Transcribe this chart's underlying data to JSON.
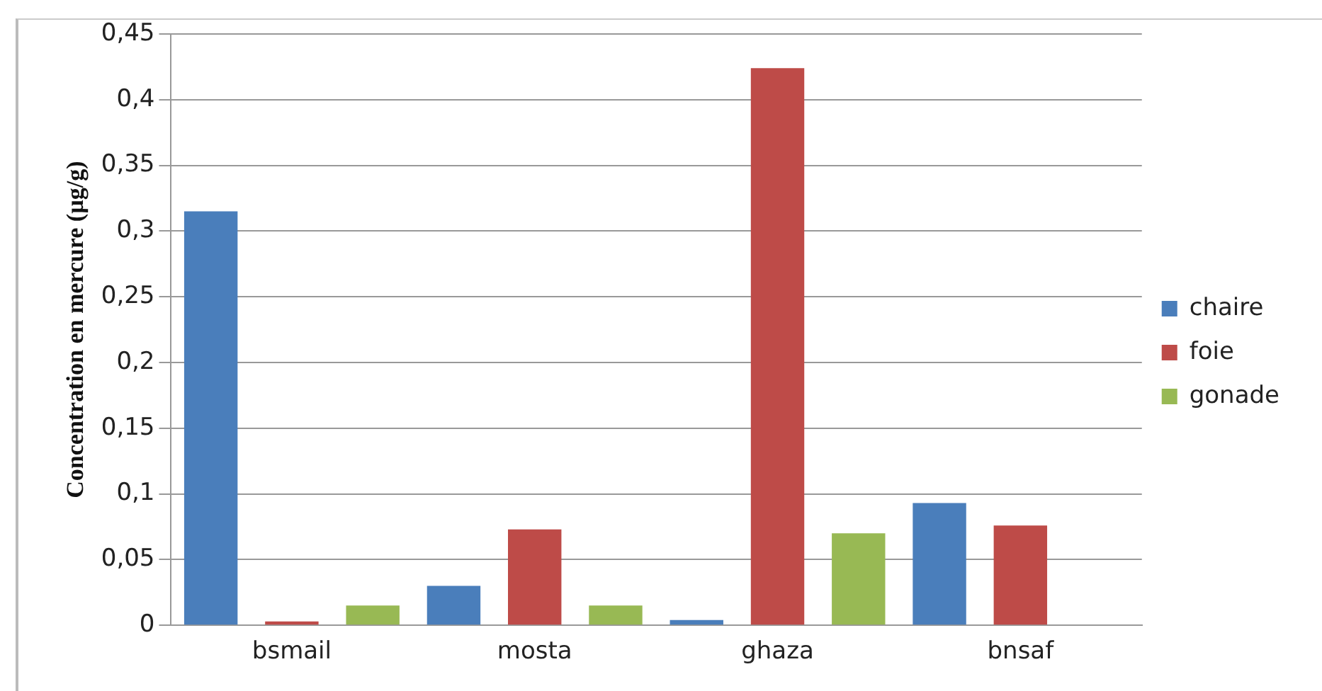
{
  "chart_data": {
    "type": "bar",
    "ylabel": "Concentration en mercure (µg/g)",
    "categories": [
      "bsmail",
      "mosta",
      "ghaza",
      "bnsaf"
    ],
    "series": [
      {
        "name": "chaire",
        "color": "#4a7ebb",
        "values": [
          0.315,
          0.03,
          0.004,
          0.093
        ]
      },
      {
        "name": "foie",
        "color": "#be4b48",
        "values": [
          0.003,
          0.073,
          0.424,
          0.076
        ]
      },
      {
        "name": "gonade",
        "color": "#98b954",
        "values": [
          0.015,
          0.015,
          0.07,
          0
        ]
      }
    ],
    "ylim": [
      0,
      0.45
    ],
    "yticks": [
      {
        "value": 0,
        "label": "0"
      },
      {
        "value": 0.05,
        "label": "0,05"
      },
      {
        "value": 0.1,
        "label": "0,1"
      },
      {
        "value": 0.15,
        "label": "0,15"
      },
      {
        "value": 0.2,
        "label": "0,2"
      },
      {
        "value": 0.25,
        "label": "0,25"
      },
      {
        "value": 0.3,
        "label": "0,3"
      },
      {
        "value": 0.35,
        "label": "0,35"
      },
      {
        "value": 0.4,
        "label": "0,4"
      },
      {
        "value": 0.45,
        "label": "0,45"
      }
    ],
    "grid": "y",
    "legend": "right"
  }
}
